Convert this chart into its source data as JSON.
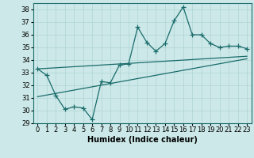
{
  "xlabel": "Humidex (Indice chaleur)",
  "ylabel": "",
  "bg_color": "#cce8e8",
  "line_color": "#1a6b6b",
  "xlim": [
    -0.5,
    23.5
  ],
  "ylim": [
    29,
    38.5
  ],
  "yticks": [
    29,
    30,
    31,
    32,
    33,
    34,
    35,
    36,
    37,
    38
  ],
  "xticks": [
    0,
    1,
    2,
    3,
    4,
    5,
    6,
    7,
    8,
    9,
    10,
    11,
    12,
    13,
    14,
    15,
    16,
    17,
    18,
    19,
    20,
    21,
    22,
    23
  ],
  "main_x": [
    0,
    1,
    2,
    3,
    4,
    5,
    6,
    7,
    8,
    9,
    10,
    11,
    12,
    13,
    14,
    15,
    16,
    17,
    18,
    19,
    20,
    21,
    22,
    23
  ],
  "main_y": [
    33.3,
    32.8,
    31.2,
    30.1,
    30.3,
    30.2,
    29.3,
    32.3,
    32.2,
    33.6,
    33.7,
    36.6,
    35.4,
    34.7,
    35.3,
    37.1,
    38.2,
    36.0,
    36.0,
    35.3,
    35.0,
    35.1,
    35.1,
    34.9
  ],
  "upper_line_x": [
    0,
    23
  ],
  "upper_line_y": [
    33.3,
    34.3
  ],
  "lower_line_x": [
    0,
    23
  ],
  "lower_line_y": [
    31.1,
    34.1
  ],
  "grid_color": "#b0d4d4",
  "title_fontsize": 8,
  "label_fontsize": 7,
  "tick_fontsize": 6
}
